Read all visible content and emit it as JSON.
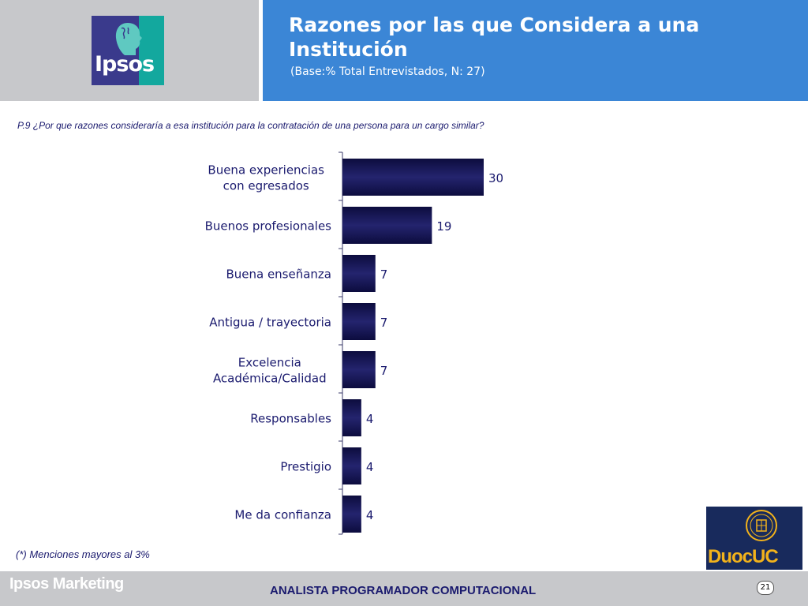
{
  "header": {
    "logo_text": "Ipsos",
    "title": "Razones por las que Considera a una Institución",
    "subtitle": "(Base:% Total Entrevistados, N: 27)"
  },
  "question": "P.9 ¿Por que razones consideraría a esa institución para la contratación de una persona para un cargo similar?",
  "chart_data": {
    "type": "bar",
    "orientation": "horizontal",
    "categories": [
      "Buena experiencias con egresados",
      "Buenos profesionales",
      "Buena enseñanza",
      "Antigua / trayectoria",
      "Excelencia Académica/Calidad",
      "Responsables",
      "Prestigio",
      "Me da confianza"
    ],
    "category_lines": [
      [
        "Buena experiencias",
        "con egresados"
      ],
      [
        "Buenos profesionales"
      ],
      [
        "Buena enseñanza"
      ],
      [
        "Antigua / trayectoria"
      ],
      [
        "Excelencia",
        "Académica/Calidad"
      ],
      [
        "Responsables"
      ],
      [
        "Prestigio"
      ],
      [
        "Me da confianza"
      ]
    ],
    "values": [
      30,
      19,
      7,
      7,
      7,
      4,
      4,
      4
    ],
    "xlim": [
      0,
      30
    ],
    "bar_color": "#24246e",
    "grid": false,
    "data_labels": true
  },
  "footnote": "(*) Menciones mayores al 3%",
  "footer": {
    "brand": "Ipsos Marketing",
    "center_text": "ANALISTA PROGRAMADOR COMPUTACIONAL",
    "page_number": "21",
    "partner_logo_text": "DuocUC"
  },
  "colors": {
    "header_blue": "#3b86d6",
    "panel_gray": "#c7c8cb",
    "navy_text": "#1a1a6e",
    "duoc_gold": "#f2b21b"
  }
}
